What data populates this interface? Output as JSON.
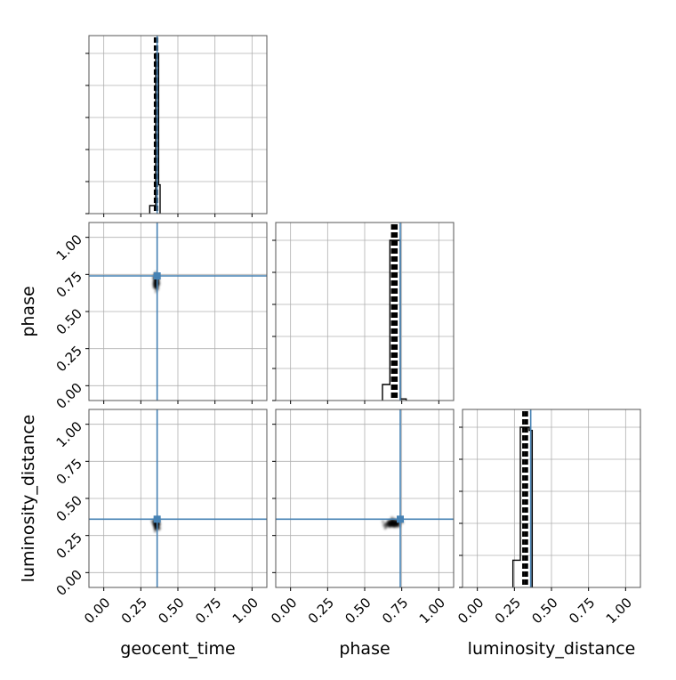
{
  "chart_data": {
    "type": "corner",
    "parameters": [
      "geocent_time",
      "phase",
      "luminosity_distance"
    ],
    "axis_range": [
      -0.1,
      1.1
    ],
    "ticks": [
      0.0,
      0.25,
      0.5,
      0.75,
      1.0
    ],
    "tick_labels": [
      "0.00",
      "0.25",
      "0.50",
      "0.75",
      "1.00"
    ],
    "grid": true,
    "colors": {
      "truth": "#4682b4",
      "hist": "#000000",
      "grid": "#b0b0b0"
    },
    "truths": {
      "geocent_time": 0.36,
      "phase": 0.74,
      "luminosity_distance": 0.36
    },
    "histograms": {
      "geocent_time": {
        "bins": [
          [
            0.31,
            0.35,
            0.05
          ],
          [
            0.35,
            0.37,
            1.0
          ],
          [
            0.37,
            0.38,
            0.18
          ]
        ],
        "quantiles": [
          0.345,
          0.36
        ]
      },
      "phase": {
        "bins": [
          [
            0.62,
            0.67,
            0.1
          ],
          [
            0.67,
            0.71,
            1.0
          ],
          [
            0.71,
            0.74,
            1.0
          ],
          [
            0.74,
            0.78,
            0.01
          ]
        ],
        "quantiles": [
          0.685,
          0.695,
          0.705,
          0.715
        ]
      },
      "luminosity_distance": {
        "bins": [
          [
            0.24,
            0.29,
            0.17
          ],
          [
            0.29,
            0.35,
            1.0
          ],
          [
            0.35,
            0.37,
            0.98
          ]
        ],
        "quantiles": [
          0.31,
          0.325,
          0.335
        ]
      }
    },
    "scatter": {
      "phase_vs_geocent_time": {
        "x": 0.355,
        "y": 0.7,
        "sx": 0.008,
        "sy": 0.025
      },
      "luminosity_distance_vs_geocent_time": {
        "x": 0.355,
        "y": 0.33,
        "sx": 0.008,
        "sy": 0.015
      },
      "luminosity_distance_vs_phase": {
        "x": 0.695,
        "y": 0.33,
        "sx": 0.025,
        "sy": 0.012
      }
    }
  }
}
